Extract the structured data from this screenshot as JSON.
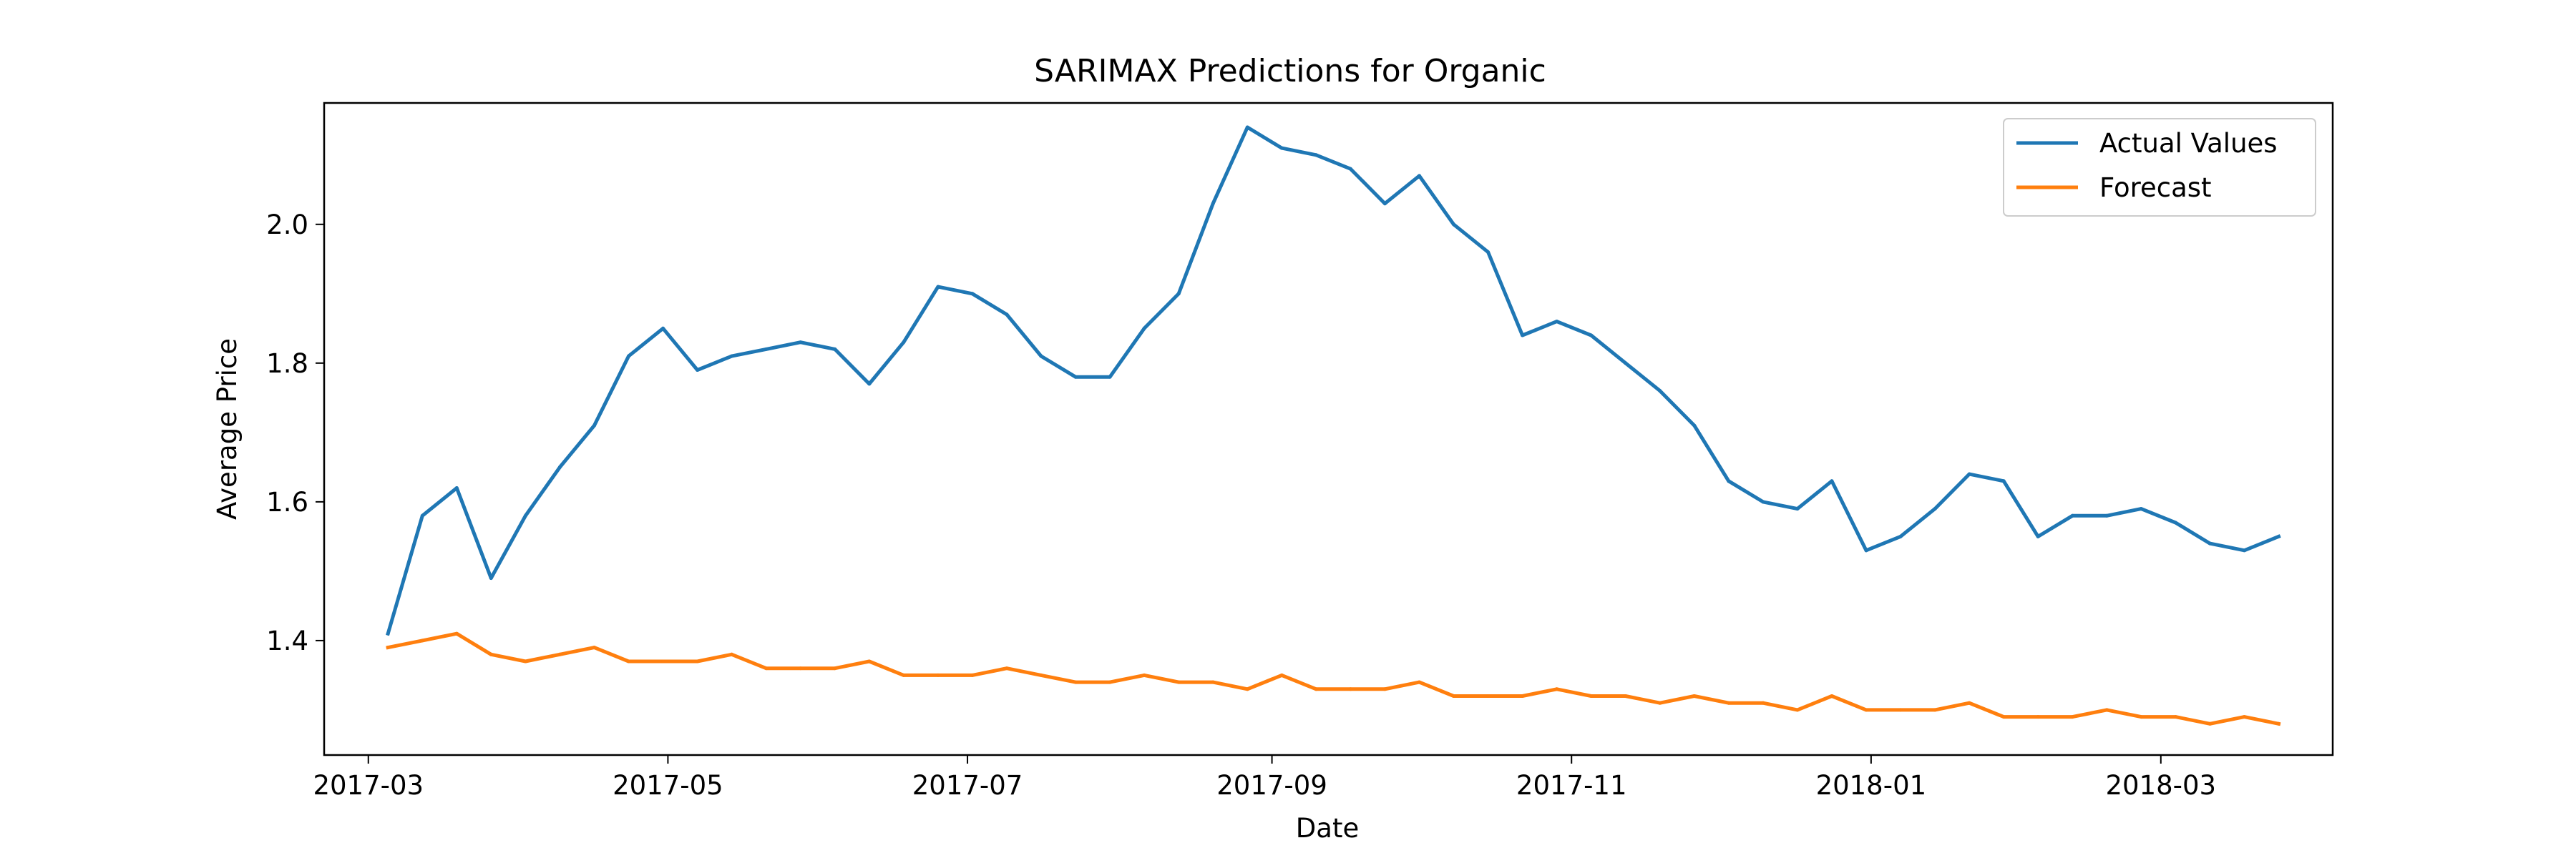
{
  "chart_data": {
    "type": "line",
    "title": "SARIMAX Predictions for Organic",
    "xlabel": "Date",
    "ylabel": "Average Price",
    "grid": false,
    "legend_position": "top-right",
    "x_range": [
      "2017-02-20",
      "2018-04-05"
    ],
    "ylim": [
      1.235,
      2.175
    ],
    "x_ticks": [
      {
        "date": "2017-03-01",
        "label": "2017-03"
      },
      {
        "date": "2017-05-01",
        "label": "2017-05"
      },
      {
        "date": "2017-07-01",
        "label": "2017-07"
      },
      {
        "date": "2017-09-01",
        "label": "2017-09"
      },
      {
        "date": "2017-11-01",
        "label": "2017-11"
      },
      {
        "date": "2018-01-01",
        "label": "2018-01"
      },
      {
        "date": "2018-03-01",
        "label": "2018-03"
      }
    ],
    "y_ticks": [
      {
        "value": 1.4,
        "label": "1.4"
      },
      {
        "value": 1.6,
        "label": "1.6"
      },
      {
        "value": 1.8,
        "label": "1.8"
      },
      {
        "value": 2.0,
        "label": "2.0"
      }
    ],
    "x": [
      "2017-03-05",
      "2017-03-12",
      "2017-03-19",
      "2017-03-26",
      "2017-04-02",
      "2017-04-09",
      "2017-04-16",
      "2017-04-23",
      "2017-04-30",
      "2017-05-07",
      "2017-05-14",
      "2017-05-21",
      "2017-05-28",
      "2017-06-04",
      "2017-06-11",
      "2017-06-18",
      "2017-06-25",
      "2017-07-02",
      "2017-07-09",
      "2017-07-16",
      "2017-07-23",
      "2017-07-30",
      "2017-08-06",
      "2017-08-13",
      "2017-08-20",
      "2017-08-27",
      "2017-09-03",
      "2017-09-10",
      "2017-09-17",
      "2017-09-24",
      "2017-10-01",
      "2017-10-08",
      "2017-10-15",
      "2017-10-22",
      "2017-10-29",
      "2017-11-05",
      "2017-11-12",
      "2017-11-19",
      "2017-11-26",
      "2017-12-03",
      "2017-12-10",
      "2017-12-17",
      "2017-12-24",
      "2017-12-31",
      "2018-01-07",
      "2018-01-14",
      "2018-01-21",
      "2018-01-28",
      "2018-02-04",
      "2018-02-11",
      "2018-02-18",
      "2018-02-25",
      "2018-03-04",
      "2018-03-11",
      "2018-03-18",
      "2018-03-25"
    ],
    "series": [
      {
        "name": "Actual Values",
        "color": "#1f77b4",
        "values": [
          1.41,
          1.58,
          1.62,
          1.49,
          1.58,
          1.65,
          1.71,
          1.81,
          1.85,
          1.79,
          1.81,
          1.82,
          1.83,
          1.82,
          1.77,
          1.83,
          1.91,
          1.9,
          1.87,
          1.81,
          1.78,
          1.78,
          1.85,
          1.9,
          2.03,
          2.14,
          2.11,
          2.1,
          2.08,
          2.03,
          2.07,
          2.0,
          1.96,
          1.84,
          1.86,
          1.84,
          1.8,
          1.76,
          1.71,
          1.63,
          1.6,
          1.59,
          1.63,
          1.53,
          1.55,
          1.59,
          1.64,
          1.63,
          1.55,
          1.58,
          1.58,
          1.59,
          1.57,
          1.54,
          1.53,
          1.55
        ]
      },
      {
        "name": "Forecast",
        "color": "#ff7f0e",
        "values": [
          1.39,
          1.4,
          1.41,
          1.38,
          1.37,
          1.38,
          1.39,
          1.37,
          1.37,
          1.37,
          1.38,
          1.36,
          1.36,
          1.36,
          1.37,
          1.35,
          1.35,
          1.35,
          1.36,
          1.35,
          1.34,
          1.34,
          1.35,
          1.34,
          1.34,
          1.33,
          1.35,
          1.33,
          1.33,
          1.33,
          1.34,
          1.32,
          1.32,
          1.32,
          1.33,
          1.32,
          1.32,
          1.31,
          1.32,
          1.31,
          1.31,
          1.3,
          1.32,
          1.3,
          1.3,
          1.3,
          1.31,
          1.29,
          1.29,
          1.29,
          1.3,
          1.29,
          1.29,
          1.28,
          1.29,
          1.28
        ]
      }
    ]
  }
}
